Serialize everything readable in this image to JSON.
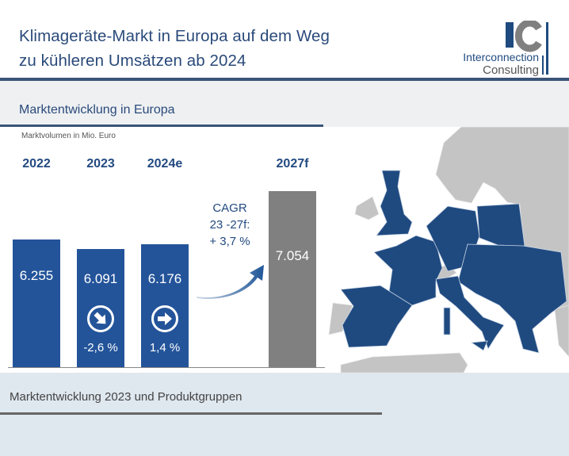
{
  "header": {
    "title_line1": "Klimageräte-Markt in Europa auf dem Weg",
    "title_line2": "zu kühleren Umsätzen ab 2024"
  },
  "logo": {
    "mark": "IC",
    "line1": "Interconnection",
    "line2": "Consulting"
  },
  "section1": {
    "title": "Marktentwicklung  in Europa"
  },
  "section2": {
    "title": "Marktentwicklung  2023 und Produktgruppen"
  },
  "colors": {
    "blue": "#23549a",
    "gray": "#808080",
    "map_blue": "#1f4a80",
    "map_gray": "#c4c4c4"
  },
  "chart_data": {
    "type": "bar",
    "ylabel": "Marktvolumen  in Mio. Euro",
    "categories": [
      "2022",
      "2023",
      "2024e",
      "2027f"
    ],
    "values": [
      6255,
      6091,
      6176,
      7054
    ],
    "value_labels": [
      "6.255",
      "6.091",
      "6.176",
      "7.054"
    ],
    "changes": [
      null,
      {
        "label": "-2,6 %",
        "direction": "down-right-icon"
      },
      {
        "label": "1,4 %",
        "direction": "right-icon"
      },
      null
    ],
    "bar_colors": [
      "#23549a",
      "#23549a",
      "#23549a",
      "#808080"
    ],
    "ylim": [
      4145,
      7300
    ],
    "annotation": {
      "line1": "CAGR",
      "line2": "23 -27f:",
      "line3": "+ 3,7 %"
    }
  }
}
